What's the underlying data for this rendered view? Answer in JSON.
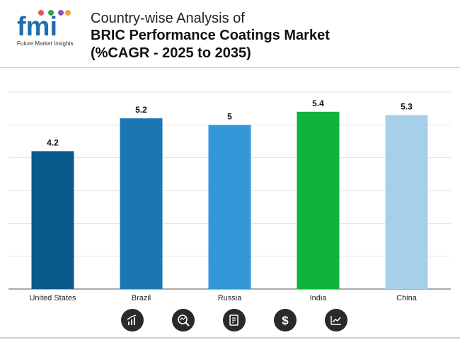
{
  "header": {
    "logo_text": "fmi",
    "logo_tagline": "Future Market Insights",
    "title_line1": "Country-wise Analysis of",
    "title_line2": "BRIC Performance Coatings Market",
    "title_line3": "(%CAGR - 2025 to 2035)"
  },
  "chart_data": {
    "type": "bar",
    "title": "Country-wise Analysis of BRIC Performance Coatings Market (%CAGR - 2025 to 2035)",
    "categories": [
      "United States",
      "Brazil",
      "Russia",
      "India",
      "China"
    ],
    "values": [
      4.2,
      5.2,
      5,
      5.4,
      5.3
    ],
    "value_labels": [
      "4.2",
      "5.2",
      "5",
      "5.4",
      "5.3"
    ],
    "colors": [
      "#0b5a8c",
      "#1d76b4",
      "#3497d8",
      "#10b43c",
      "#a6d0ea"
    ],
    "xlabel": "",
    "ylabel": "",
    "ylim": [
      0,
      6
    ],
    "grid": true
  },
  "footer_icons": [
    "bar-chart-icon",
    "magnifier-chart-icon",
    "document-search-icon",
    "dollar-icon",
    "line-chart-icon"
  ]
}
